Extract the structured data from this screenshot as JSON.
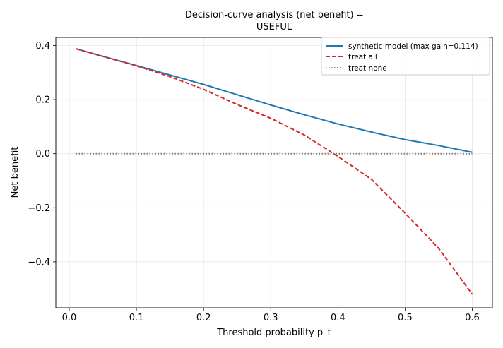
{
  "chart_data": {
    "type": "line",
    "title_line1": "Decision-curve analysis (net benefit) --",
    "title_line2": "USEFUL",
    "xlabel": "Threshold probability p_t",
    "ylabel": "Net benefit",
    "xlim": [
      -0.02,
      0.63
    ],
    "ylim": [
      -0.57,
      0.43
    ],
    "xticks": [
      0.0,
      0.1,
      0.2,
      0.3,
      0.4,
      0.5,
      0.6
    ],
    "xtick_labels": [
      "0.0",
      "0.1",
      "0.2",
      "0.3",
      "0.4",
      "0.5",
      "0.6"
    ],
    "yticks": [
      -0.4,
      -0.2,
      0.0,
      0.2,
      0.4
    ],
    "ytick_labels": [
      "−0.4",
      "−0.2",
      "0.0",
      "0.2",
      "0.4"
    ],
    "grid": true,
    "legend_position": "top-right",
    "series": [
      {
        "name": "synthetic model (max gain=0.114)",
        "color": "#1f77b4",
        "style": "solid",
        "x": [
          0.01,
          0.05,
          0.1,
          0.15,
          0.2,
          0.25,
          0.3,
          0.35,
          0.4,
          0.45,
          0.5,
          0.55,
          0.6
        ],
        "y": [
          0.388,
          0.36,
          0.326,
          0.291,
          0.256,
          0.218,
          0.18,
          0.144,
          0.11,
          0.08,
          0.052,
          0.03,
          0.005
        ]
      },
      {
        "name": "treat all",
        "color": "#d62728",
        "style": "dashed",
        "x": [
          0.01,
          0.05,
          0.1,
          0.15,
          0.2,
          0.25,
          0.3,
          0.35,
          0.4,
          0.45,
          0.5,
          0.55,
          0.6
        ],
        "y": [
          0.388,
          0.36,
          0.325,
          0.285,
          0.238,
          0.182,
          0.131,
          0.069,
          -0.01,
          -0.095,
          -0.22,
          -0.35,
          -0.52
        ]
      },
      {
        "name": "treat none",
        "color": "#7f7f7f",
        "style": "dotted",
        "x": [
          0.01,
          0.6
        ],
        "y": [
          0.0,
          0.0
        ]
      }
    ]
  }
}
